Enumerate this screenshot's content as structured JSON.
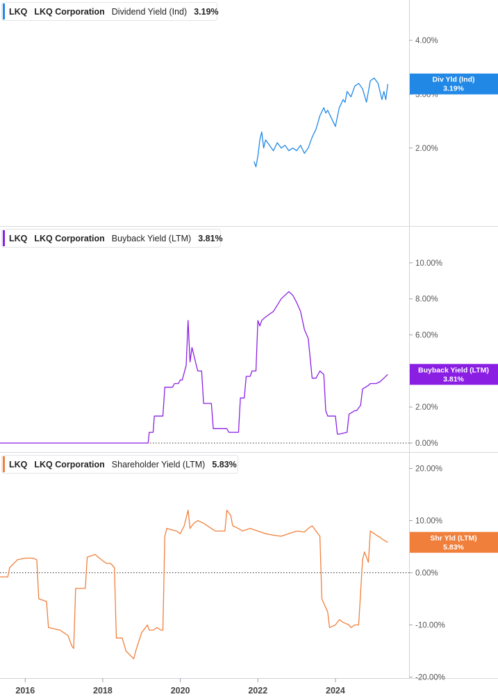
{
  "x_axis": {
    "ticks": [
      "2016",
      "2018",
      "2020",
      "2022",
      "2024"
    ],
    "range": [
      2015.35,
      2025.9
    ]
  },
  "chart_data": [
    {
      "type": "line",
      "key": "div",
      "title": "LKQ  LKQ Corporation  Dividend Yield (Ind)",
      "ticker": "LKQ",
      "company": "LKQ Corporation",
      "metric": "Dividend Yield (Ind)",
      "last_value": "3.19%",
      "color": "#2188e6",
      "badge": {
        "label": "Div Yld (Ind)",
        "value": "3.19%"
      },
      "y_ticks": [
        "2.00%",
        "3.00%",
        "4.00%"
      ],
      "y_tick_values": [
        2,
        3,
        4
      ],
      "ylim": [
        0.55,
        4.75
      ],
      "zero_line": false,
      "series": [
        {
          "x": [
            2021.9,
            2021.95,
            2022.0,
            2022.05,
            2022.1,
            2022.15,
            2022.2,
            2022.3,
            2022.4,
            2022.5,
            2022.6,
            2022.7,
            2022.8,
            2022.9,
            2023.0,
            2023.1,
            2023.2,
            2023.3,
            2023.4,
            2023.5,
            2023.6,
            2023.7,
            2023.75,
            2023.8,
            2023.9,
            2024.0,
            2024.1,
            2024.2,
            2024.25,
            2024.3,
            2024.4,
            2024.5,
            2024.6,
            2024.7,
            2024.8,
            2024.9,
            2025.0,
            2025.1,
            2025.2,
            2025.25,
            2025.3,
            2025.35
          ],
          "y": [
            1.75,
            1.65,
            1.85,
            2.15,
            2.3,
            2.0,
            2.15,
            2.05,
            1.95,
            2.1,
            2.0,
            2.05,
            1.95,
            2.0,
            1.95,
            2.05,
            1.9,
            2.0,
            2.2,
            2.35,
            2.6,
            2.75,
            2.65,
            2.7,
            2.55,
            2.4,
            2.75,
            2.9,
            2.85,
            3.05,
            2.95,
            3.15,
            3.2,
            3.1,
            2.85,
            3.25,
            3.3,
            3.2,
            2.9,
            3.05,
            2.9,
            3.19
          ]
        }
      ]
    },
    {
      "type": "line",
      "key": "buy",
      "title": "LKQ  LKQ Corporation  Buyback Yield (LTM)",
      "ticker": "LKQ",
      "company": "LKQ Corporation",
      "metric": "Buyback Yield (LTM)",
      "last_value": "3.81%",
      "color": "#8a1fe3",
      "badge": {
        "label": "Buyback Yield (LTM)",
        "value": "3.81%"
      },
      "y_ticks": [
        "0.00%",
        "2.00%",
        "4.00%",
        "6.00%",
        "8.00%",
        "10.00%"
      ],
      "y_tick_values": [
        0,
        2,
        4,
        6,
        8,
        10
      ],
      "ylim": [
        -0.5,
        12.0
      ],
      "zero_line": true,
      "series": [
        {
          "x": [
            2015.35,
            2018.2,
            2019.17,
            2019.2,
            2019.3,
            2019.33,
            2019.55,
            2019.6,
            2019.8,
            2019.85,
            2019.95,
            2020.0,
            2020.05,
            2020.15,
            2020.2,
            2020.25,
            2020.3,
            2020.45,
            2020.55,
            2020.6,
            2020.8,
            2020.85,
            2020.95,
            2021.2,
            2021.25,
            2021.35,
            2021.5,
            2021.55,
            2021.65,
            2021.7,
            2021.8,
            2021.85,
            2021.95,
            2022.0,
            2022.05,
            2022.1,
            2022.2,
            2022.4,
            2022.6,
            2022.8,
            2022.9,
            2023.0,
            2023.1,
            2023.2,
            2023.3,
            2023.4,
            2023.5,
            2023.55,
            2023.6,
            2023.7,
            2023.75,
            2023.8,
            2024.0,
            2024.05,
            2024.1,
            2024.3,
            2024.35,
            2024.5,
            2024.55,
            2024.65,
            2024.7,
            2024.85,
            2024.9,
            2025.05,
            2025.15,
            2025.25,
            2025.35
          ],
          "y": [
            0,
            0,
            0,
            0.6,
            0.6,
            1.5,
            1.5,
            3.1,
            3.1,
            3.3,
            3.3,
            3.5,
            3.5,
            4.3,
            6.8,
            4.5,
            5.3,
            4.0,
            4.0,
            2.2,
            2.2,
            0.8,
            0.8,
            0.8,
            0.6,
            0.6,
            0.6,
            2.5,
            2.5,
            3.7,
            3.7,
            4.0,
            4.0,
            6.8,
            6.5,
            6.8,
            7.0,
            7.3,
            8.0,
            8.4,
            8.2,
            7.8,
            7.3,
            6.3,
            5.8,
            3.6,
            3.6,
            3.8,
            4.0,
            3.8,
            1.8,
            1.5,
            1.5,
            0.5,
            0.5,
            0.6,
            1.6,
            1.8,
            1.8,
            2.1,
            3.0,
            3.2,
            3.3,
            3.3,
            3.4,
            3.6,
            3.81
          ]
        }
      ]
    },
    {
      "type": "line",
      "key": "shr",
      "title": "LKQ  LKQ Corporation  Shareholder Yield (LTM)",
      "ticker": "LKQ",
      "company": "LKQ Corporation",
      "metric": "Shareholder Yield (LTM)",
      "last_value": "5.83%",
      "color": "#f07f3c",
      "badge": {
        "label": "Shr Yld (LTM)",
        "value": "5.83%"
      },
      "y_ticks": [
        "-20.00%",
        "-10.00%",
        "0.00%",
        "10.00%",
        "20.00%"
      ],
      "y_tick_values": [
        -20,
        -10,
        0,
        10,
        20
      ],
      "ylim": [
        -20.2,
        23.0
      ],
      "zero_line": true,
      "series": [
        {
          "x": [
            2015.35,
            2015.55,
            2015.6,
            2015.8,
            2016.0,
            2016.2,
            2016.3,
            2016.35,
            2016.55,
            2016.6,
            2016.9,
            2017.0,
            2017.1,
            2017.2,
            2017.25,
            2017.3,
            2017.55,
            2017.6,
            2017.8,
            2018.0,
            2018.1,
            2018.2,
            2018.3,
            2018.35,
            2018.5,
            2018.6,
            2018.8,
            2018.85,
            2019.0,
            2019.15,
            2019.2,
            2019.3,
            2019.4,
            2019.5,
            2019.55,
            2019.6,
            2019.65,
            2019.9,
            2020.0,
            2020.1,
            2020.2,
            2020.25,
            2020.35,
            2020.45,
            2020.6,
            2020.8,
            2020.9,
            2021.15,
            2021.2,
            2021.3,
            2021.35,
            2021.5,
            2021.6,
            2021.8,
            2022.0,
            2022.2,
            2022.4,
            2022.6,
            2022.8,
            2023.0,
            2023.2,
            2023.3,
            2023.4,
            2023.5,
            2023.55,
            2023.6,
            2023.65,
            2023.8,
            2023.85,
            2024.0,
            2024.1,
            2024.2,
            2024.35,
            2024.4,
            2024.5,
            2024.6,
            2024.7,
            2024.75,
            2024.85,
            2024.9,
            2025.0,
            2025.1,
            2025.15,
            2025.2,
            2025.35
          ],
          "y": [
            -0.8,
            -0.8,
            1.0,
            2.5,
            2.8,
            2.8,
            2.5,
            -5.0,
            -5.5,
            -10.5,
            -11.0,
            -11.5,
            -12.0,
            -14.0,
            -14.5,
            -3.0,
            -3.0,
            3.0,
            3.5,
            2.3,
            1.8,
            1.8,
            1.0,
            -12.5,
            -12.5,
            -15.0,
            -16.5,
            -15.0,
            -11.5,
            -10.0,
            -11.0,
            -11.0,
            -10.5,
            -11.0,
            -11.0,
            7.0,
            8.5,
            8.0,
            7.5,
            9.0,
            12.0,
            8.5,
            9.5,
            10.0,
            9.5,
            8.5,
            8.0,
            8.0,
            12.0,
            11.0,
            9.0,
            8.5,
            8.0,
            8.5,
            8.0,
            7.5,
            7.2,
            7.0,
            7.5,
            8.0,
            7.8,
            8.5,
            9.0,
            8.0,
            7.5,
            7.0,
            -5.0,
            -7.5,
            -10.5,
            -10.0,
            -9.0,
            -9.5,
            -10.0,
            -10.5,
            -10.0,
            -10.0,
            2.5,
            4.0,
            2.0,
            8.0,
            7.5,
            7.0,
            6.8,
            6.5,
            5.83
          ]
        }
      ]
    }
  ]
}
